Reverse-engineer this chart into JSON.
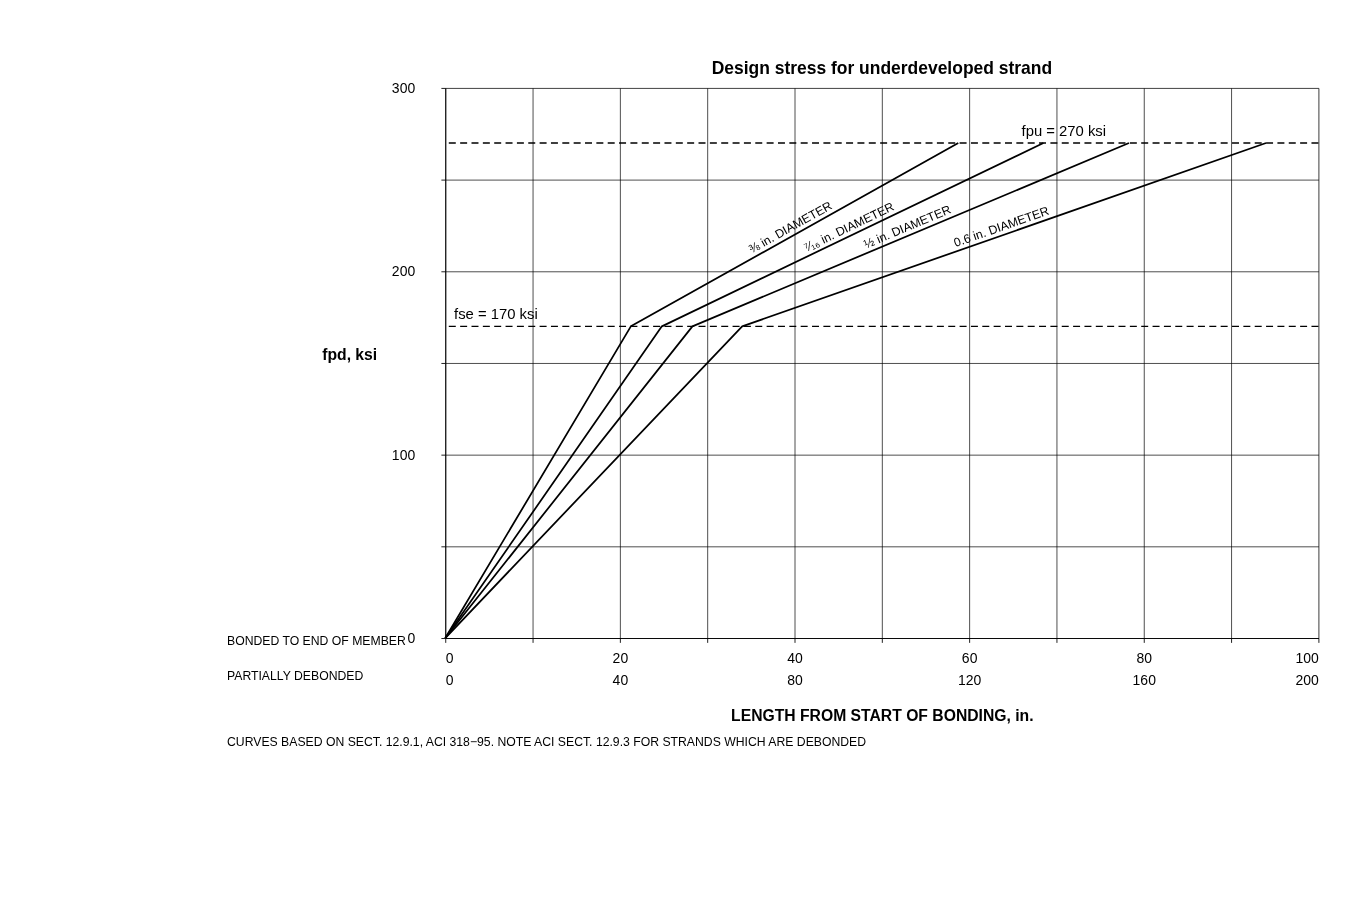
{
  "chart_data": {
    "type": "line",
    "title": "Design stress for underdeveloped strand",
    "xlabel": "LENGTH FROM START OF BONDING, in.",
    "ylabel": "fpd, ksi",
    "series": [
      {
        "name": "⅜ in. DIAMETER",
        "color": "#000000",
        "x": [
          0,
          21.25,
          58.75
        ],
        "values": [
          0,
          170,
          270
        ]
      },
      {
        "name": "⁷⁄₁₆ in. DIAMETER",
        "color": "#000000",
        "x": [
          0,
          24.8,
          68.5
        ],
        "values": [
          0,
          170,
          270
        ]
      },
      {
        "name": "½ in. DIAMETER",
        "color": "#000000",
        "x": [
          0,
          28.3,
          78.3
        ],
        "values": [
          0,
          170,
          270
        ]
      },
      {
        "name": "0.6 in. DIAMETER",
        "color": "#000000",
        "x": [
          0,
          34,
          94
        ],
        "values": [
          0,
          170,
          270
        ]
      }
    ],
    "xlim": [
      0,
      100
    ],
    "ylim": [
      0,
      300
    ],
    "xticks": [
      0,
      {
        "value": 10,
        "label": null
      },
      20,
      {
        "value": 30,
        "label": null
      },
      40,
      {
        "value": 50,
        "label": null
      },
      60,
      {
        "value": 70,
        "label": null
      },
      80,
      {
        "value": 90,
        "label": null
      },
      100
    ],
    "yticks": [
      0,
      {
        "value": 50,
        "label": null
      },
      100,
      {
        "value": 150,
        "label": null
      },
      200,
      {
        "value": 250,
        "label": null
      },
      300
    ],
    "x2lim": [
      0,
      200
    ],
    "x2ticks": [
      0,
      40,
      80,
      120,
      160,
      200
    ],
    "ref_lines": [
      {
        "axis": "y",
        "value": 170,
        "label": "fse = 170 ksi",
        "line_style": "dashed"
      },
      {
        "axis": "y",
        "value": 270,
        "label": "fpu = 270 ksi",
        "line_style": "dashed"
      }
    ],
    "annotations": [
      "BONDED TO END OF MEMBER",
      "PARTIALLY DEBONDED",
      "CURVES BASED ON SECT. 12.9.1, ACI 318−95. NOTE ACI SECT. 12.9.3 FOR STRANDS WHICH ARE DEBONDED"
    ],
    "grid": true,
    "legend": false,
    "marker": "none",
    "line_style": "solid"
  }
}
